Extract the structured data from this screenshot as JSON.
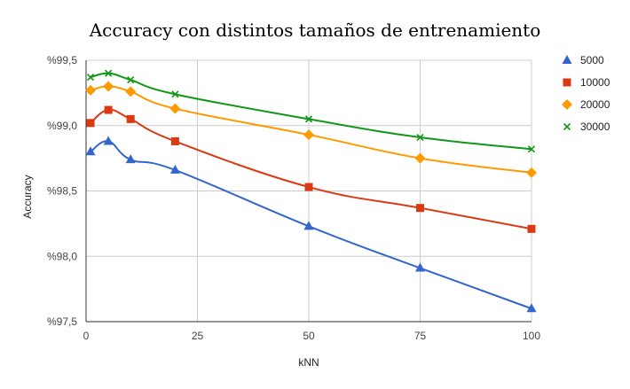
{
  "chart_data": {
    "type": "line",
    "title": "Accuracy con distintos tamaños de entrenamiento",
    "xlabel": "kNN",
    "ylabel": "Accuracy",
    "xlim": [
      0,
      100
    ],
    "ylim": [
      97.5,
      99.5
    ],
    "x_ticks": [
      0,
      25,
      50,
      75,
      100
    ],
    "x_tick_labels": [
      "0",
      "25",
      "50",
      "75",
      "100"
    ],
    "y_ticks": [
      97.5,
      98.0,
      98.5,
      99.0,
      99.5
    ],
    "y_tick_labels": [
      "%97,5",
      "%98,0",
      "%98,5",
      "%99,0",
      "%99,5"
    ],
    "grid": true,
    "legend_position": "right",
    "smooth": true,
    "x": [
      1,
      5,
      10,
      20,
      50,
      75,
      100
    ],
    "series": [
      {
        "name": "5000",
        "color": "#3366cc",
        "marker": "triangle",
        "values": [
          98.8,
          98.88,
          98.74,
          98.66,
          98.23,
          97.91,
          97.6
        ]
      },
      {
        "name": "10000",
        "color": "#dc3912",
        "marker": "square",
        "values": [
          99.02,
          99.12,
          99.05,
          98.88,
          98.53,
          98.37,
          98.21
        ]
      },
      {
        "name": "20000",
        "color": "#ff9900",
        "marker": "diamond",
        "values": [
          99.27,
          99.3,
          99.26,
          99.13,
          98.93,
          98.75,
          98.64
        ]
      },
      {
        "name": "30000",
        "color": "#109618",
        "marker": "x",
        "values": [
          99.37,
          99.4,
          99.35,
          99.24,
          99.05,
          98.91,
          98.82
        ]
      }
    ]
  }
}
